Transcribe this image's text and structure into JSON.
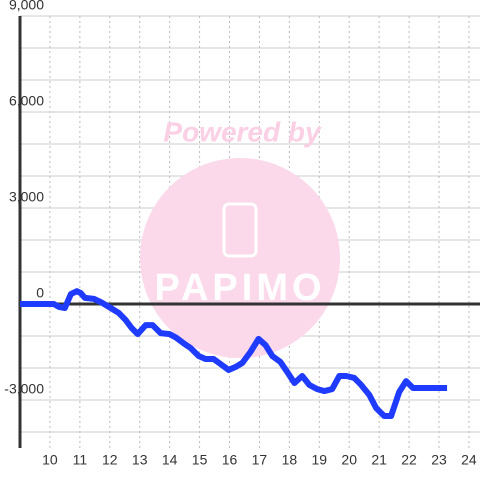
{
  "chart_data": {
    "type": "line",
    "watermark": {
      "top": "Powered by",
      "bottom": "PAPIMO"
    },
    "x": [
      9.0,
      10.13,
      10.3,
      10.5,
      10.7,
      10.9,
      11.03,
      11.17,
      11.47,
      11.7,
      11.97,
      12.3,
      12.53,
      12.73,
      12.93,
      13.2,
      13.43,
      13.7,
      14.0,
      14.23,
      14.5,
      14.7,
      14.97,
      15.2,
      15.47,
      15.7,
      15.97,
      16.2,
      16.43,
      16.7,
      16.97,
      17.2,
      17.43,
      17.7,
      17.93,
      18.17,
      18.43,
      18.67,
      18.93,
      19.17,
      19.43,
      19.67,
      19.9,
      20.17,
      20.4,
      20.67,
      20.9,
      21.17,
      21.4,
      21.67,
      21.9,
      22.13,
      22.63,
      23.27
    ],
    "series": [
      {
        "color": "#1f3bff",
        "values": [
          0,
          0,
          -90,
          -125,
          310,
          400,
          340,
          190,
          160,
          60,
          -90,
          -280,
          -500,
          -750,
          -940,
          -660,
          -660,
          -910,
          -940,
          -1060,
          -1250,
          -1375,
          -1625,
          -1720,
          -1720,
          -1875,
          -2060,
          -1970,
          -1840,
          -1500,
          -1090,
          -1280,
          -1625,
          -1810,
          -2125,
          -2470,
          -2250,
          -2530,
          -2660,
          -2720,
          -2660,
          -2250,
          -2250,
          -2310,
          -2530,
          -2840,
          -3250,
          -3500,
          -3500,
          -2750,
          -2410,
          -2625,
          -2625,
          -2625
        ]
      }
    ],
    "xlim": [
      9,
      24.37
    ],
    "xticks": [
      10,
      11,
      12,
      13,
      14,
      15,
      16,
      17,
      18,
      19,
      20,
      21,
      22,
      23,
      24
    ],
    "ylim": [
      -4500,
      9000
    ],
    "yticks": [
      {
        "value": -3000,
        "label": "-3,000"
      },
      0,
      {
        "value": 3000,
        "label": "3,000"
      },
      {
        "value": 6000,
        "label": "6,000"
      },
      {
        "value": 9000,
        "label": "9,000"
      }
    ],
    "yminor": [
      -4000,
      -2000,
      -1000,
      1000,
      2000,
      4000,
      5000,
      7000,
      8000
    ],
    "grid": true
  }
}
